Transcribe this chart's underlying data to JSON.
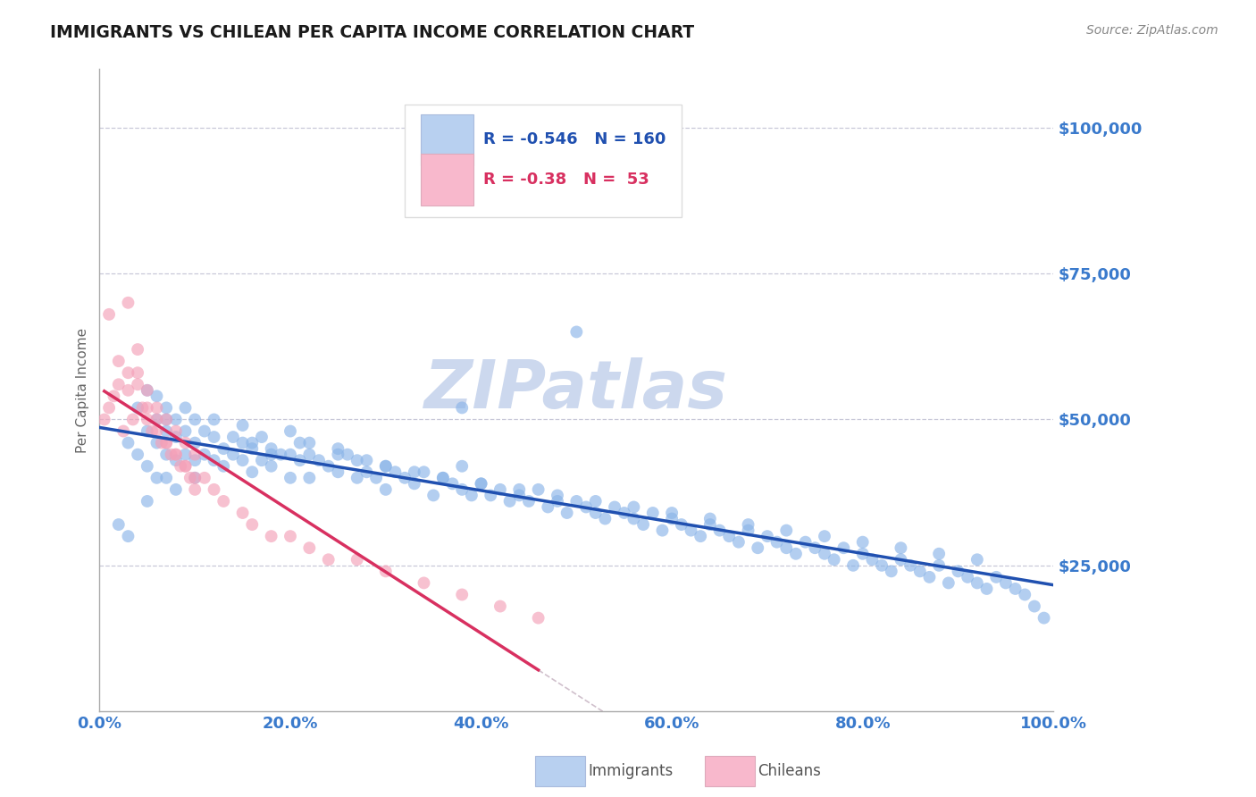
{
  "title": "IMMIGRANTS VS CHILEAN PER CAPITA INCOME CORRELATION CHART",
  "source_text": "Source: ZipAtlas.com",
  "ylabel": "Per Capita Income",
  "ytick_labels": [
    "$25,000",
    "$50,000",
    "$75,000",
    "$100,000"
  ],
  "ytick_values": [
    25000,
    50000,
    75000,
    100000
  ],
  "xtick_labels": [
    "0.0%",
    "20.0%",
    "40.0%",
    "60.0%",
    "80.0%",
    "100.0%"
  ],
  "xtick_values": [
    0,
    0.2,
    0.4,
    0.6,
    0.8,
    1.0
  ],
  "xlim": [
    0,
    1.0
  ],
  "ylim": [
    0,
    110000
  ],
  "immigrant_R": -0.546,
  "immigrant_N": 160,
  "chilean_R": -0.38,
  "chilean_N": 53,
  "immigrant_color": "#8ab4e8",
  "chilean_color": "#f4a0b8",
  "immigrant_line_color": "#2050b0",
  "chilean_line_color": "#d83060",
  "trendline_dashed_color": "#d0c0cc",
  "background_color": "#ffffff",
  "grid_color": "#c8c8d8",
  "title_color": "#1a1a1a",
  "tick_color": "#3a7acc",
  "watermark_color": "#ccd8ee",
  "legend_box_color_immigrant": "#b8d0f0",
  "legend_box_color_chilean": "#f8b8cc",
  "font_family": "DejaVu Sans",
  "immigrant_scatter_x": [
    0.02,
    0.03,
    0.03,
    0.04,
    0.04,
    0.05,
    0.05,
    0.05,
    0.05,
    0.06,
    0.06,
    0.06,
    0.06,
    0.07,
    0.07,
    0.07,
    0.07,
    0.07,
    0.08,
    0.08,
    0.08,
    0.08,
    0.09,
    0.09,
    0.09,
    0.1,
    0.1,
    0.1,
    0.1,
    0.11,
    0.11,
    0.12,
    0.12,
    0.12,
    0.13,
    0.13,
    0.14,
    0.14,
    0.15,
    0.15,
    0.15,
    0.16,
    0.16,
    0.17,
    0.17,
    0.18,
    0.18,
    0.19,
    0.2,
    0.2,
    0.21,
    0.21,
    0.22,
    0.22,
    0.23,
    0.24,
    0.25,
    0.25,
    0.26,
    0.27,
    0.27,
    0.28,
    0.29,
    0.3,
    0.3,
    0.31,
    0.32,
    0.33,
    0.34,
    0.35,
    0.36,
    0.37,
    0.38,
    0.38,
    0.39,
    0.4,
    0.41,
    0.42,
    0.43,
    0.44,
    0.45,
    0.46,
    0.47,
    0.48,
    0.49,
    0.5,
    0.51,
    0.52,
    0.53,
    0.54,
    0.55,
    0.56,
    0.57,
    0.58,
    0.59,
    0.6,
    0.61,
    0.62,
    0.63,
    0.64,
    0.65,
    0.66,
    0.67,
    0.68,
    0.69,
    0.7,
    0.71,
    0.72,
    0.73,
    0.74,
    0.75,
    0.76,
    0.77,
    0.78,
    0.79,
    0.8,
    0.81,
    0.82,
    0.83,
    0.84,
    0.85,
    0.86,
    0.87,
    0.88,
    0.89,
    0.9,
    0.91,
    0.92,
    0.93,
    0.94,
    0.95,
    0.96,
    0.97,
    0.98,
    0.99,
    0.16,
    0.18,
    0.2,
    0.22,
    0.25,
    0.28,
    0.3,
    0.33,
    0.36,
    0.4,
    0.44,
    0.48,
    0.52,
    0.56,
    0.6,
    0.64,
    0.68,
    0.72,
    0.76,
    0.8,
    0.84,
    0.88,
    0.92,
    0.5,
    0.38
  ],
  "immigrant_scatter_y": [
    32000,
    30000,
    46000,
    44000,
    52000,
    48000,
    42000,
    55000,
    36000,
    50000,
    46000,
    40000,
    54000,
    50000,
    44000,
    48000,
    40000,
    52000,
    47000,
    43000,
    50000,
    38000,
    48000,
    44000,
    52000,
    46000,
    43000,
    50000,
    40000,
    48000,
    44000,
    47000,
    43000,
    50000,
    45000,
    42000,
    47000,
    44000,
    46000,
    43000,
    49000,
    45000,
    41000,
    47000,
    43000,
    45000,
    42000,
    44000,
    44000,
    40000,
    43000,
    46000,
    44000,
    40000,
    43000,
    42000,
    45000,
    41000,
    44000,
    40000,
    43000,
    41000,
    40000,
    42000,
    38000,
    41000,
    40000,
    39000,
    41000,
    37000,
    40000,
    39000,
    38000,
    42000,
    37000,
    39000,
    37000,
    38000,
    36000,
    37000,
    36000,
    38000,
    35000,
    36000,
    34000,
    36000,
    35000,
    34000,
    33000,
    35000,
    34000,
    33000,
    32000,
    34000,
    31000,
    33000,
    32000,
    31000,
    30000,
    32000,
    31000,
    30000,
    29000,
    31000,
    28000,
    30000,
    29000,
    28000,
    27000,
    29000,
    28000,
    27000,
    26000,
    28000,
    25000,
    27000,
    26000,
    25000,
    24000,
    26000,
    25000,
    24000,
    23000,
    25000,
    22000,
    24000,
    23000,
    22000,
    21000,
    23000,
    22000,
    21000,
    20000,
    18000,
    16000,
    46000,
    44000,
    48000,
    46000,
    44000,
    43000,
    42000,
    41000,
    40000,
    39000,
    38000,
    37000,
    36000,
    35000,
    34000,
    33000,
    32000,
    31000,
    30000,
    29000,
    28000,
    27000,
    26000,
    65000,
    52000
  ],
  "chilean_scatter_x": [
    0.005,
    0.01,
    0.015,
    0.02,
    0.025,
    0.03,
    0.035,
    0.04,
    0.045,
    0.05,
    0.055,
    0.06,
    0.065,
    0.07,
    0.075,
    0.08,
    0.085,
    0.09,
    0.095,
    0.1,
    0.01,
    0.02,
    0.03,
    0.04,
    0.05,
    0.06,
    0.07,
    0.08,
    0.09,
    0.1,
    0.03,
    0.04,
    0.05,
    0.06,
    0.07,
    0.08,
    0.09,
    0.1,
    0.11,
    0.12,
    0.13,
    0.15,
    0.16,
    0.18,
    0.2,
    0.22,
    0.24,
    0.27,
    0.3,
    0.34,
    0.38,
    0.42,
    0.46
  ],
  "chilean_scatter_y": [
    50000,
    52000,
    54000,
    56000,
    48000,
    58000,
    50000,
    62000,
    52000,
    55000,
    48000,
    52000,
    46000,
    50000,
    44000,
    48000,
    42000,
    46000,
    40000,
    44000,
    68000,
    60000,
    55000,
    58000,
    50000,
    48000,
    46000,
    44000,
    42000,
    40000,
    70000,
    56000,
    52000,
    50000,
    46000,
    44000,
    42000,
    38000,
    40000,
    38000,
    36000,
    34000,
    32000,
    30000,
    30000,
    28000,
    26000,
    26000,
    24000,
    22000,
    20000,
    18000,
    16000
  ]
}
